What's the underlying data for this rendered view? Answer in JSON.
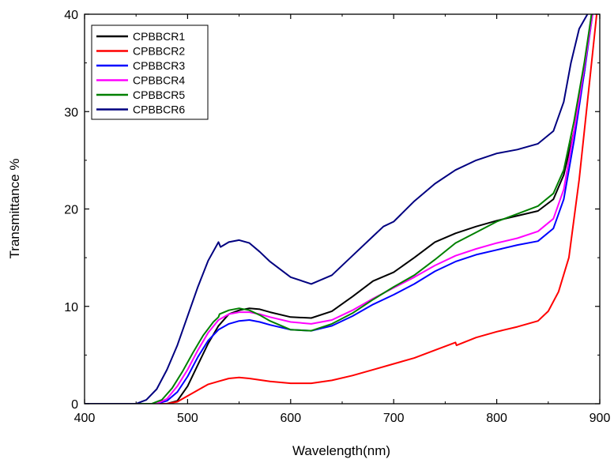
{
  "chart_data": {
    "type": "line",
    "xlabel": "Wavelength(nm)",
    "ylabel": "Transmittance %",
    "xlim": [
      400,
      900
    ],
    "ylim": [
      0,
      40
    ],
    "xticks": [
      400,
      500,
      600,
      700,
      800,
      900
    ],
    "yticks": [
      0,
      10,
      20,
      30,
      40
    ],
    "xtick_labels": [
      "400",
      "500",
      "600",
      "700",
      "800",
      "900"
    ],
    "ytick_labels": [
      "0",
      "10",
      "20",
      "30",
      "40"
    ],
    "grid": false,
    "legend_position": "top-left",
    "series": [
      {
        "name": "CPBBCR1",
        "color": "#000000",
        "x": [
          400,
          480,
          490,
          500,
          510,
          520,
          530,
          540,
          550,
          560,
          570,
          580,
          600,
          620,
          640,
          660,
          680,
          700,
          720,
          740,
          760,
          780,
          800,
          820,
          840,
          855,
          865,
          875,
          885,
          892
        ],
        "y": [
          0,
          0,
          0.3,
          1.8,
          4.0,
          6.2,
          8.0,
          9.2,
          9.6,
          9.8,
          9.7,
          9.4,
          8.9,
          8.8,
          9.5,
          11.0,
          12.6,
          13.5,
          15.0,
          16.6,
          17.5,
          18.2,
          18.8,
          19.3,
          19.8,
          21.0,
          23.5,
          28.0,
          34.0,
          40.0
        ]
      },
      {
        "name": "CPBBCR2",
        "color": "#ff0000",
        "x": [
          400,
          480,
          490,
          500,
          510,
          520,
          530,
          540,
          550,
          560,
          580,
          600,
          620,
          640,
          660,
          680,
          700,
          720,
          740,
          760,
          761,
          780,
          800,
          820,
          840,
          850,
          860,
          870,
          880,
          890,
          897
        ],
        "y": [
          0,
          0,
          0.2,
          0.8,
          1.4,
          2.0,
          2.3,
          2.6,
          2.7,
          2.6,
          2.3,
          2.1,
          2.1,
          2.4,
          2.9,
          3.5,
          4.1,
          4.7,
          5.5,
          6.3,
          6.0,
          6.8,
          7.4,
          7.9,
          8.5,
          9.5,
          11.5,
          15.0,
          23.0,
          33.0,
          40.0
        ]
      },
      {
        "name": "CPBBCR3",
        "color": "#0000ff",
        "x": [
          400,
          470,
          480,
          490,
          500,
          510,
          520,
          530,
          540,
          550,
          560,
          570,
          580,
          600,
          620,
          640,
          660,
          680,
          700,
          720,
          740,
          760,
          780,
          800,
          820,
          840,
          855,
          865,
          875,
          885,
          893
        ],
        "y": [
          0,
          0,
          0.3,
          1.2,
          2.8,
          4.8,
          6.5,
          7.6,
          8.2,
          8.5,
          8.6,
          8.4,
          8.1,
          7.6,
          7.5,
          8.0,
          9.0,
          10.2,
          11.2,
          12.3,
          13.6,
          14.6,
          15.3,
          15.8,
          16.3,
          16.7,
          18.0,
          21.0,
          27.0,
          34.0,
          40.0
        ]
      },
      {
        "name": "CPBBCR4",
        "color": "#ff00ff",
        "x": [
          400,
          470,
          480,
          490,
          500,
          510,
          520,
          530,
          540,
          550,
          560,
          570,
          580,
          600,
          620,
          640,
          660,
          680,
          700,
          720,
          740,
          760,
          780,
          800,
          820,
          840,
          855,
          865,
          875,
          885,
          893
        ],
        "y": [
          0,
          0,
          0.5,
          1.8,
          3.5,
          5.5,
          7.3,
          8.6,
          9.2,
          9.4,
          9.4,
          9.2,
          8.9,
          8.4,
          8.2,
          8.6,
          9.6,
          10.8,
          11.9,
          13.0,
          14.2,
          15.2,
          15.9,
          16.5,
          17.0,
          17.7,
          19.0,
          22.0,
          28.0,
          34.5,
          40.0
        ]
      },
      {
        "name": "CPBBCR5",
        "color": "#008000",
        "x": [
          400,
          465,
          475,
          485,
          495,
          505,
          515,
          525,
          530,
          531,
          540,
          550,
          560,
          570,
          580,
          600,
          620,
          640,
          660,
          680,
          700,
          720,
          740,
          760,
          780,
          800,
          820,
          840,
          855,
          865,
          875,
          885,
          892
        ],
        "y": [
          0,
          0,
          0.4,
          1.6,
          3.3,
          5.2,
          7.0,
          8.4,
          8.9,
          9.2,
          9.6,
          9.8,
          9.6,
          9.1,
          8.5,
          7.6,
          7.5,
          8.2,
          9.3,
          10.7,
          12.0,
          13.2,
          14.8,
          16.5,
          17.6,
          18.7,
          19.5,
          20.3,
          21.6,
          24.0,
          29.0,
          35.0,
          40.0
        ]
      },
      {
        "name": "CPBBCR6",
        "color": "#000080",
        "x": [
          400,
          450,
          460,
          470,
          480,
          490,
          500,
          510,
          520,
          530,
          532,
          540,
          550,
          560,
          570,
          580,
          600,
          620,
          640,
          660,
          680,
          690,
          700,
          720,
          740,
          760,
          780,
          800,
          820,
          840,
          855,
          865,
          872,
          880,
          888
        ],
        "y": [
          0,
          0,
          0.4,
          1.5,
          3.5,
          6.0,
          9.0,
          12.0,
          14.7,
          16.6,
          16.1,
          16.6,
          16.8,
          16.5,
          15.6,
          14.6,
          13.0,
          12.3,
          13.2,
          15.2,
          17.2,
          18.2,
          18.7,
          20.8,
          22.6,
          24.0,
          25.0,
          25.7,
          26.1,
          26.7,
          28.0,
          31.0,
          35.0,
          38.5,
          40.0
        ]
      }
    ]
  }
}
